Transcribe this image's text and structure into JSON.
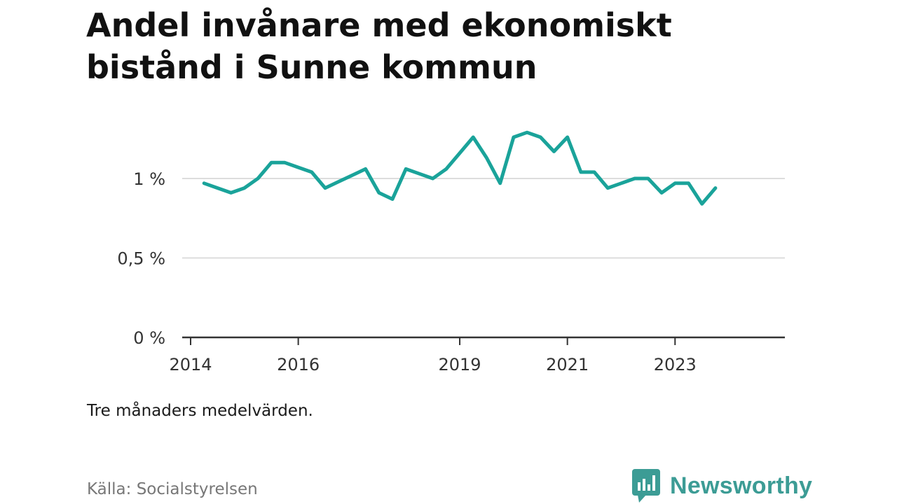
{
  "title": "Andel invånare med ekonomiskt bistånd i Sunne kommun",
  "note": "Tre månaders medelvärden.",
  "source": "Källa: Socialstyrelsen",
  "brand": {
    "name": "Newsworthy",
    "icon": "bar-chart-speech-bubble-icon",
    "color": "#3c9c95"
  },
  "chart_data": {
    "type": "line",
    "title": "Andel invånare med ekonomiskt bistånd i Sunne kommun",
    "xlabel": "",
    "ylabel": "",
    "x_ticks": [
      "2014",
      "2016",
      "2019",
      "2021",
      "2023"
    ],
    "y_ticks": [
      "0 %",
      "0,5 %",
      "1 %"
    ],
    "ylim": [
      0,
      1.3
    ],
    "grid": true,
    "line_color": "#1aa39a",
    "series": [
      {
        "x": [
          "2014-04",
          "2014-07",
          "2014-10",
          "2015-01",
          "2015-04",
          "2015-07",
          "2015-10",
          "2016-01",
          "2016-04",
          "2016-07",
          "2016-10",
          "2017-01",
          "2017-04",
          "2017-07",
          "2017-10",
          "2018-01",
          "2018-04",
          "2018-07",
          "2018-10",
          "2019-01",
          "2019-04",
          "2019-07",
          "2019-10",
          "2020-01",
          "2020-04",
          "2020-07",
          "2020-10",
          "2021-01",
          "2021-04",
          "2021-07",
          "2021-10",
          "2022-01",
          "2022-04",
          "2022-07",
          "2022-10",
          "2023-01",
          "2023-04",
          "2023-07",
          "2023-10"
        ],
        "values": [
          0.97,
          0.94,
          0.91,
          0.94,
          1.0,
          1.1,
          1.1,
          1.07,
          1.04,
          0.94,
          0.98,
          1.02,
          1.06,
          0.91,
          0.87,
          1.06,
          1.03,
          1.0,
          1.06,
          1.16,
          1.26,
          1.13,
          0.97,
          1.26,
          1.29,
          1.26,
          1.17,
          1.26,
          1.04,
          1.04,
          0.94,
          0.97,
          1.0,
          1.0,
          0.91,
          0.97,
          0.97,
          0.84,
          0.94
        ]
      }
    ]
  }
}
